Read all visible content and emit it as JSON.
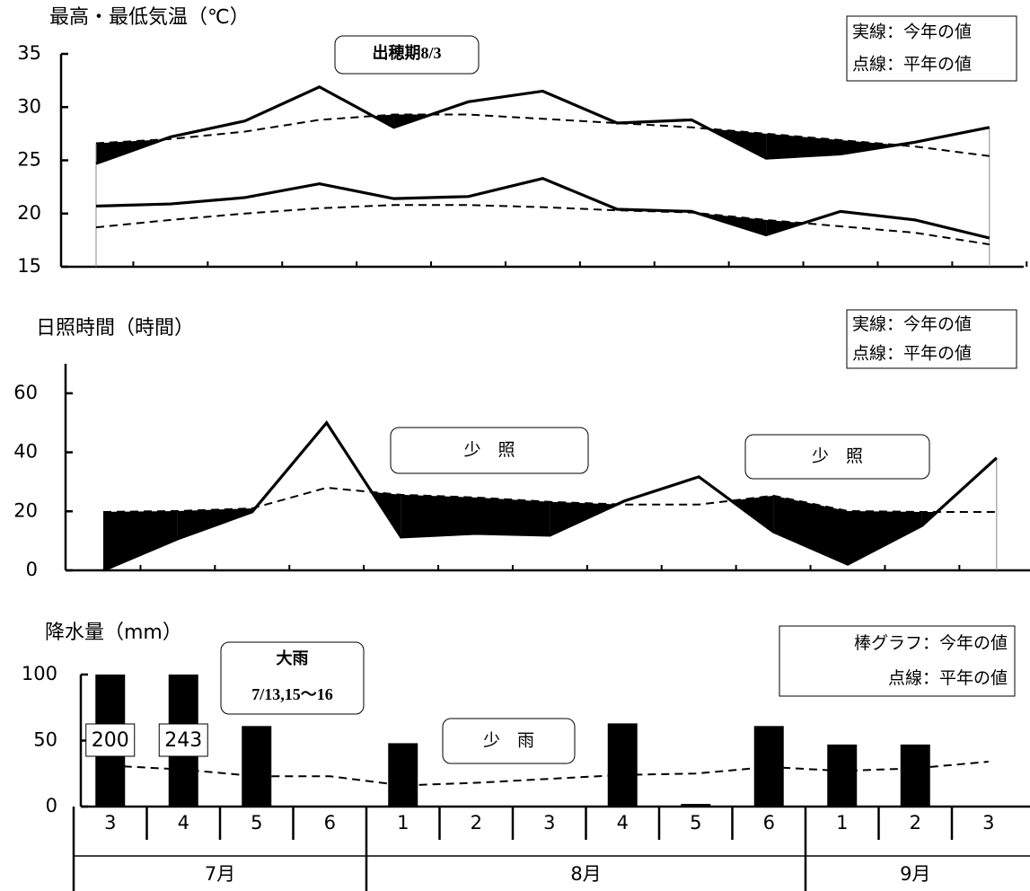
{
  "chart_data": [
    {
      "type": "line",
      "title": "最高・最低気温（℃）",
      "ylim": [
        15,
        35
      ],
      "yticks": [
        15,
        20,
        25,
        30,
        35
      ],
      "legend": [
        "実線：今年の値",
        "点線：平年の値"
      ],
      "annotations": [
        {
          "lines": [
            "出穂期8/3"
          ]
        }
      ],
      "fill_below_normal": true,
      "series": [
        {
          "style": "solid",
          "color": "#000000",
          "values": [
            24.7,
            27.2,
            28.7,
            31.9,
            28.1,
            30.5,
            31.5,
            28.5,
            28.8,
            25.2,
            25.6,
            26.7,
            28.1
          ]
        },
        {
          "style": "dashed",
          "color": "#000000",
          "values": [
            26.6,
            27.0,
            27.7,
            28.8,
            29.3,
            29.3,
            28.9,
            28.5,
            28.1,
            27.5,
            26.9,
            26.3,
            25.4
          ]
        },
        {
          "style": "solid",
          "color": "#000000",
          "values": [
            20.7,
            20.9,
            21.5,
            22.8,
            21.4,
            21.6,
            23.3,
            20.4,
            20.2,
            18.0,
            20.2,
            19.4,
            17.7
          ]
        },
        {
          "style": "dashed",
          "color": "#000000",
          "values": [
            18.7,
            19.4,
            20.0,
            20.5,
            20.8,
            20.8,
            20.6,
            20.3,
            20.1,
            19.4,
            18.8,
            18.2,
            17.1
          ]
        }
      ]
    },
    {
      "type": "line",
      "title": "日照時間（時間）",
      "ylim": [
        0,
        70
      ],
      "yticks": [
        0,
        20,
        40,
        60
      ],
      "legend": [
        "実線：今年の値",
        "点線：平年の値"
      ],
      "annotations": [
        {
          "lines": [
            "少　照"
          ]
        },
        {
          "lines": [
            "少　照"
          ]
        }
      ],
      "fill_below_normal": true,
      "series": [
        {
          "style": "solid",
          "color": "#000000",
          "values": [
            0,
            10.7,
            19.8,
            50,
            11.3,
            12.5,
            11.9,
            23.5,
            31.7,
            13.1,
            2.1,
            15.2,
            38.1
          ]
        },
        {
          "style": "dashed",
          "color": "#000000",
          "values": [
            19.8,
            20.1,
            21,
            28,
            25.6,
            24.7,
            23.2,
            22.3,
            22.3,
            25.3,
            20.1,
            19.8,
            19.8
          ]
        }
      ]
    },
    {
      "type": "bar",
      "title": "降水量（mm）",
      "categories": [
        "3",
        "4",
        "5",
        "6",
        "1",
        "2",
        "3",
        "4",
        "5",
        "6",
        "1",
        "2",
        "3"
      ],
      "groups": [
        "7月",
        "8月",
        "9月"
      ],
      "ylim": [
        0,
        100
      ],
      "yticks": [
        0,
        50,
        100
      ],
      "legend": [
        "棒グラフ：今年の値",
        "点線：平年の値"
      ],
      "annotations": [
        {
          "lines": [
            "大雨",
            "7/13,15〜16"
          ]
        },
        {
          "lines": [
            "少　雨"
          ]
        }
      ],
      "series": [
        {
          "style": "bar",
          "color": "#000000",
          "values": [
            200,
            243,
            61,
            0,
            48,
            0,
            0,
            63,
            2,
            61,
            47,
            47,
            0
          ],
          "value_labels": [
            "200",
            "243",
            null,
            null,
            null,
            null,
            null,
            null,
            null,
            null,
            null,
            null,
            null
          ]
        },
        {
          "style": "dashed",
          "color": "#000000",
          "values": [
            31,
            28,
            23,
            23,
            16,
            18,
            21,
            24,
            25,
            30,
            27,
            29,
            34
          ]
        }
      ]
    }
  ]
}
